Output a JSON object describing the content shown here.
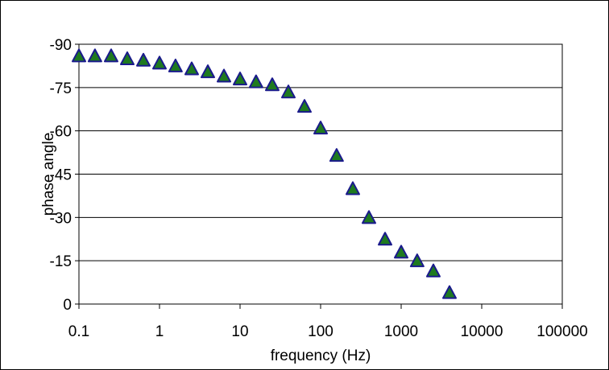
{
  "chart_data": {
    "type": "scatter",
    "title": "",
    "xlabel": "frequency (Hz)",
    "ylabel": "phase angle",
    "x_scale": "log",
    "xlim": [
      0.1,
      100000
    ],
    "ylim": [
      0,
      -90
    ],
    "y_axis_reversed": true,
    "grid": "horizontal major gridlines",
    "legend": "none",
    "x_ticks": [
      "0.1",
      "1",
      "10",
      "100",
      "1000",
      "10000",
      "100000"
    ],
    "y_ticks": [
      "-90",
      "-75",
      "-60",
      "-45",
      "-30",
      "-15",
      "0"
    ],
    "marker": {
      "shape": "triangle",
      "fill": "#1f7a1f",
      "stroke": "#1a1a8c"
    },
    "series": [
      {
        "x": [
          0.1,
          0.158,
          0.251,
          0.398,
          0.631,
          1,
          1.58,
          2.51,
          3.98,
          6.31,
          10,
          15.8,
          25.1,
          39.8,
          63.1,
          100,
          158,
          251,
          398,
          631,
          1000,
          1580,
          2510,
          3980
        ],
        "y": [
          -86,
          -86,
          -86,
          -85,
          -84.5,
          -83.5,
          -82.5,
          -81.5,
          -80.5,
          -79,
          -78,
          -77,
          -76,
          -73.5,
          -68.5,
          -61,
          -51.5,
          -40,
          -30,
          -22.5,
          -18,
          -15,
          -11.5,
          -4
        ]
      }
    ]
  }
}
